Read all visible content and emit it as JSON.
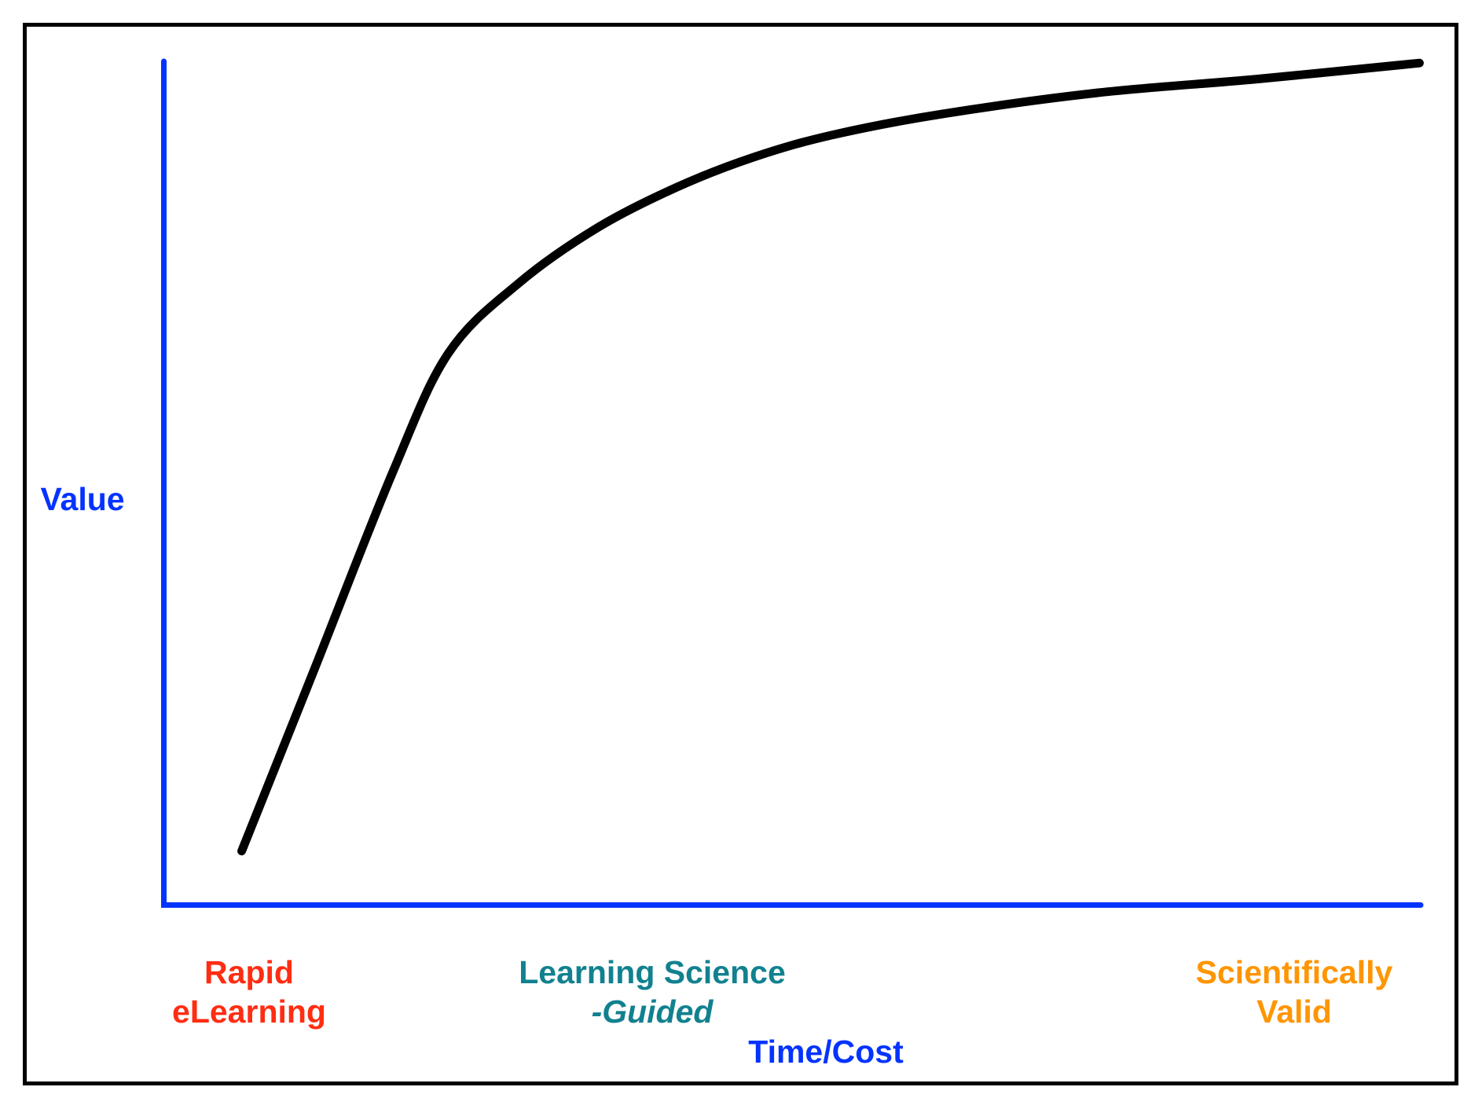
{
  "figure": {
    "colors": {
      "axis": "#0433ff",
      "curve": "#000000"
    },
    "y_axis_label": "Value",
    "x_axis_label": "Time/Cost",
    "x_categories": [
      {
        "line1": "Rapid",
        "line2": "eLearning",
        "color": "#ff2d12"
      },
      {
        "line1": "Learning Science",
        "line2": "-Guided",
        "color": "#11818f"
      },
      {
        "line1": "Scientifically",
        "line2": "Valid",
        "color": "#ff9500"
      }
    ]
  },
  "chart_data": {
    "type": "line",
    "title": "",
    "xlabel": "Time/Cost",
    "ylabel": "Value",
    "x_categories": [
      "Rapid eLearning",
      "Learning Science -Guided",
      "Scientifically Valid"
    ],
    "x_category_positions_pct": [
      7,
      39,
      90
    ],
    "axis_ranges": {
      "x": [
        0,
        100
      ],
      "y": [
        0,
        100
      ]
    },
    "grid": false,
    "legend": false,
    "description": "Qualitative diminishing-returns curve: Value rises steeply at low Time/Cost (Rapid eLearning), bends through Learning Science-Guided, and plateaus near Scientifically Valid.",
    "series": [
      {
        "name": "Value vs Time/Cost",
        "points_pct": [
          [
            6.4,
            6.7
          ],
          [
            12.2,
            28.3
          ],
          [
            18.4,
            51.5
          ],
          [
            22.8,
            65.5
          ],
          [
            28.4,
            73.8
          ],
          [
            34.6,
            80.3
          ],
          [
            40.9,
            85.1
          ],
          [
            47.1,
            88.7
          ],
          [
            53.3,
            91.3
          ],
          [
            62.1,
            93.8
          ],
          [
            74.5,
            96.3
          ],
          [
            87.0,
            97.9
          ],
          [
            99.9,
            99.8
          ]
        ]
      }
    ]
  }
}
